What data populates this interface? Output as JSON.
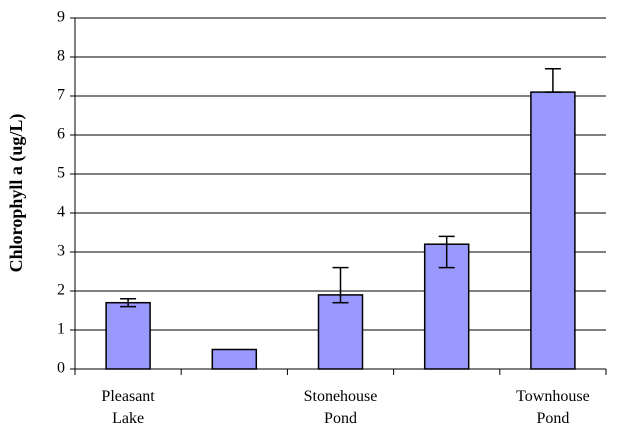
{
  "chart_data": {
    "type": "bar",
    "y_label": "Chlorophyll a (ug/L)",
    "categories": [
      "Pleasant Lake",
      null,
      "Stonehouse Pond",
      null,
      "Townhouse Pond"
    ],
    "values": [
      1.7,
      0.5,
      1.9,
      3.2,
      7.1
    ],
    "error_minus": [
      0.1,
      null,
      0.2,
      0.6,
      0
    ],
    "error_plus": [
      0.1,
      null,
      0.7,
      0.2,
      0.6
    ],
    "color": "#9999ff",
    "ylim": [
      0,
      9
    ],
    "yticks": [
      0,
      1,
      2,
      3,
      4,
      5,
      6,
      7,
      8,
      9
    ],
    "grid": true
  }
}
